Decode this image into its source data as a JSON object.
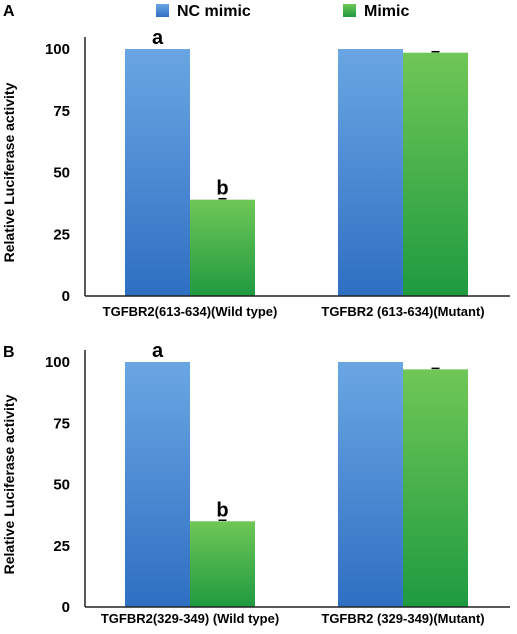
{
  "legend": {
    "items": [
      {
        "label": "NC mimic",
        "color": "#4f8fd6"
      },
      {
        "label": "Mimic",
        "color": "#3fb14a"
      }
    ]
  },
  "colors": {
    "nc_top": "#6aa6e3",
    "nc_bottom": "#2f6fc2",
    "mimic_top": "#6fc756",
    "mimic_bottom": "#1f9a40"
  },
  "chart_data": [
    {
      "panel": "A",
      "type": "bar",
      "categories": [
        "TGFBR2(613-634)(Wild type)",
        "TGFBR2 (613-634)(Mutant)"
      ],
      "series": [
        {
          "name": "NC mimic",
          "values": [
            100,
            100
          ]
        },
        {
          "name": "Mimic",
          "values": [
            39,
            98.5
          ]
        }
      ],
      "significance_labels": [
        [
          "a",
          "b"
        ],
        [
          "",
          ""
        ]
      ],
      "ylabel": "Relative Luciferase activity",
      "ylim": [
        0,
        100
      ],
      "yticks": [
        0,
        25,
        50,
        75,
        100
      ],
      "grid": false,
      "legend_position": "top"
    },
    {
      "panel": "B",
      "type": "bar",
      "categories": [
        "TGFBR2(329-349) (Wild type)",
        "TGFBR2 (329-349)(Mutant)"
      ],
      "series": [
        {
          "name": "NC mimic",
          "values": [
            100,
            100
          ]
        },
        {
          "name": "Mimic",
          "values": [
            35,
            97
          ]
        }
      ],
      "significance_labels": [
        [
          "a",
          "b"
        ],
        [
          "",
          ""
        ]
      ],
      "ylabel": "Relative Luciferase activity",
      "ylim": [
        0,
        100
      ],
      "yticks": [
        0,
        25,
        50,
        75,
        100
      ],
      "grid": false,
      "legend_position": "top"
    }
  ]
}
